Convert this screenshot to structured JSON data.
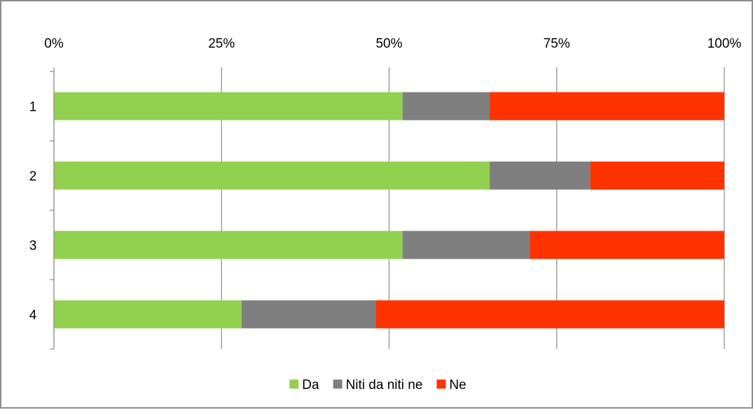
{
  "chart_data": {
    "type": "bar",
    "orientation": "horizontal",
    "stacked": "percent",
    "categories": [
      "1",
      "2",
      "3",
      "4"
    ],
    "series": [
      {
        "name": "Da",
        "color": "#92d050",
        "values": [
          52,
          65,
          52,
          28
        ]
      },
      {
        "name": "Niti da niti ne",
        "color": "#7f7f7f",
        "values": [
          13,
          15,
          19,
          20
        ]
      },
      {
        "name": "Ne",
        "color": "#ff3300",
        "values": [
          35,
          20,
          29,
          52
        ]
      }
    ],
    "xlim": [
      0,
      100
    ],
    "x_ticks": [
      "0%",
      "25%",
      "50%",
      "75%",
      "100%"
    ],
    "x_axis_position": "top",
    "grid": true,
    "legend_position": "bottom",
    "title": "",
    "xlabel": "",
    "ylabel": ""
  }
}
